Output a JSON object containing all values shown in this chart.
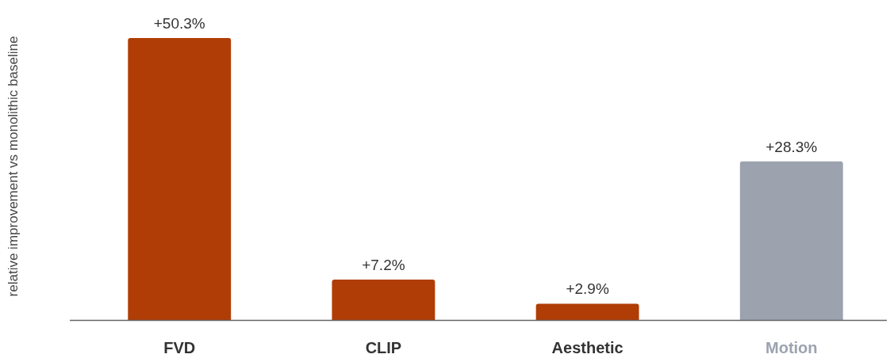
{
  "chart_data": {
    "type": "bar",
    "ylabel": "relative improvement vs monolithic baseline",
    "categories": [
      "FVD",
      "CLIP",
      "Aesthetic",
      "Motion"
    ],
    "values": [
      50.3,
      7.2,
      2.9,
      28.3
    ],
    "colors": [
      "#b03d06",
      "#b03d06",
      "#b03d06",
      "#9ca3af"
    ],
    "value_labels": [
      "+50.3%",
      "+7.2%",
      "+2.9%",
      "+28.3%"
    ]
  }
}
